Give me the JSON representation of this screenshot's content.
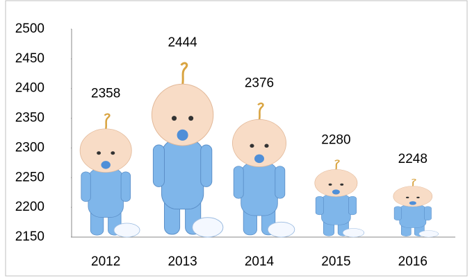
{
  "chart_data": {
    "type": "pictograph",
    "categories": [
      "2012",
      "2013",
      "2014",
      "2015",
      "2016"
    ],
    "values": [
      2358,
      2444,
      2376,
      2280,
      2248
    ],
    "ylim": [
      2150,
      2500
    ],
    "yticks": [
      2150,
      2200,
      2250,
      2300,
      2350,
      2400,
      2450,
      2500
    ],
    "color": "#7fb6ea",
    "grid": false
  }
}
